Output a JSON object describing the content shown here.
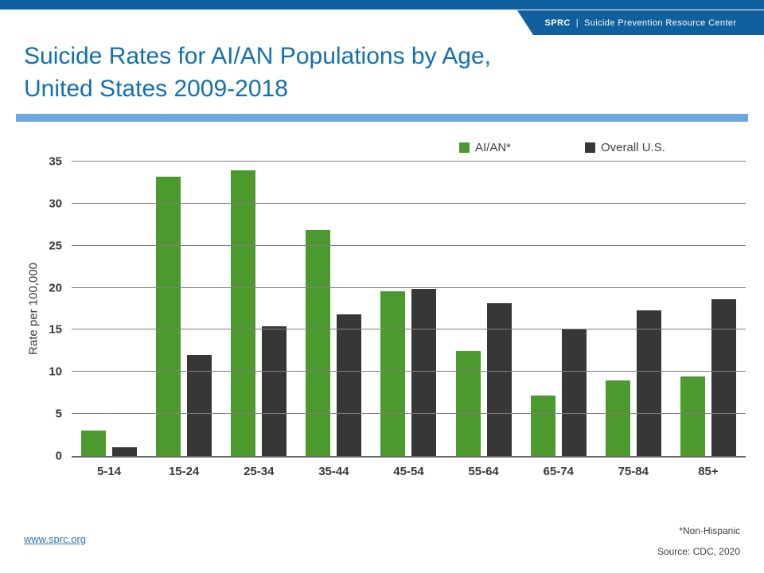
{
  "header": {
    "brand": "SPRC",
    "separator": "|",
    "org_name": "Suicide Prevention Resource Center",
    "bar_color": "#11609E"
  },
  "title": {
    "line1": "Suicide Rates for AI/AN Populations by Age,",
    "line2": "United States 2009-2018",
    "color": "#1270B2"
  },
  "divider_color": "#6FA8DC",
  "chart_data": {
    "type": "bar",
    "title": "",
    "categories": [
      "5-14",
      "15-24",
      "25-34",
      "35-44",
      "45-54",
      "55-64",
      "65-74",
      "75-84",
      "85+"
    ],
    "series": [
      {
        "name": "AI/AN*",
        "color": "#4C9A2E",
        "values": [
          3.0,
          33.2,
          34.0,
          26.9,
          19.6,
          12.5,
          7.2,
          9.0,
          9.5
        ]
      },
      {
        "name": "Overall U.S.",
        "color": "#373737",
        "values": [
          1.0,
          12.0,
          15.4,
          16.8,
          19.9,
          18.2,
          15.0,
          17.3,
          18.6
        ]
      }
    ],
    "xlabel": "",
    "ylabel": "Rate per 100,000",
    "ylim": [
      0,
      35
    ],
    "yticks": [
      0,
      5,
      10,
      15,
      20,
      25,
      30,
      35
    ],
    "grid": true,
    "legend_position": "top-right"
  },
  "footer": {
    "link": "www.sprc.org",
    "link_color": "#2E74B5",
    "note": "*Non-Hispanic",
    "source": "Source: CDC, 2020"
  }
}
